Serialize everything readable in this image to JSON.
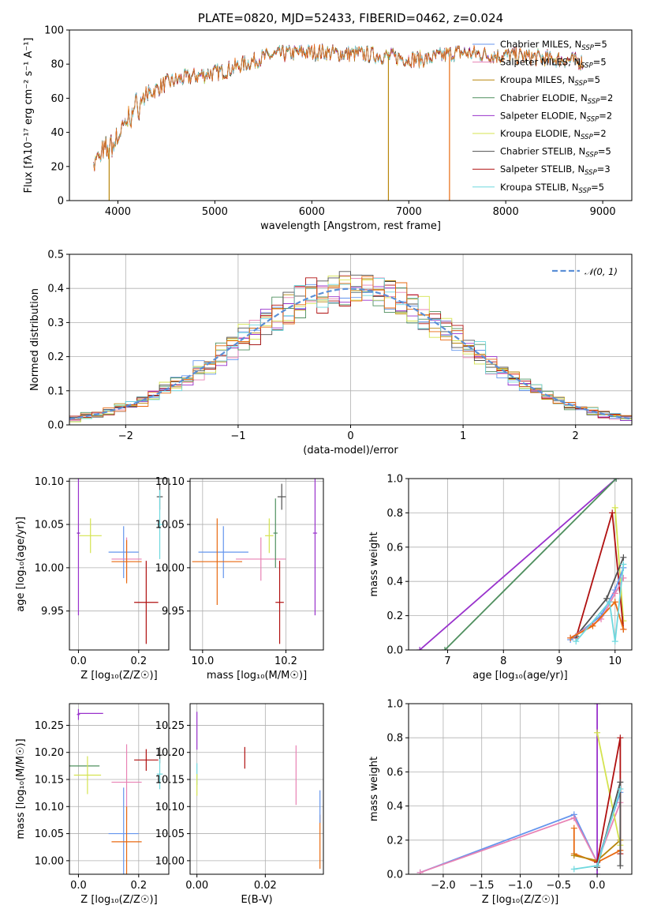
{
  "colors": {
    "Chabrier MILES": "#6495ed",
    "Salpeter MILES": "#e882b4",
    "Kroupa MILES": "#b8860b",
    "Chabrier ELODIE": "#4f8f5f",
    "Salpeter ELODIE": "#9932cc",
    "Kroupa ELODIE": "#d4e34f",
    "Chabrier STELIB": "#505050",
    "Salpeter STELIB": "#b01010",
    "Kroupa STELIB": "#6fd8de",
    "orange": "#e86a10",
    "normal": "#5b8fd6"
  },
  "chart_data": [
    {
      "id": "spectrum",
      "type": "line",
      "title": "PLATE=0820, MJD=52433, FIBERID=0462, z=0.024",
      "xlabel": "wavelength [Angstrom, rest frame]",
      "ylabel": "Flux [fλ10⁻¹⁷ erg cm⁻² s⁻¹ A⁻¹]",
      "xlim": [
        3500,
        9300
      ],
      "ylim": [
        0,
        100
      ],
      "xticks": [
        4000,
        5000,
        6000,
        7000,
        8000,
        9000
      ],
      "yticks": [
        0,
        20,
        40,
        60,
        80,
        100
      ],
      "grid": false,
      "legend_position": "top-right",
      "legend": [
        {
          "series": "Chabrier MILES",
          "label": "Chabrier MILES, N",
          "sub": "SSP",
          "tail": "=5"
        },
        {
          "series": "Salpeter MILES",
          "label": "Salpeter MILES, N",
          "sub": "SSP",
          "tail": "=5"
        },
        {
          "series": "Kroupa MILES",
          "label": "Kroupa MILES, N",
          "sub": "SSP",
          "tail": "=5"
        },
        {
          "series": "Chabrier ELODIE",
          "label": "Chabrier ELODIE, N",
          "sub": "SSP",
          "tail": "=2"
        },
        {
          "series": "Salpeter ELODIE",
          "label": "Salpeter ELODIE, N",
          "sub": "SSP",
          "tail": "=2"
        },
        {
          "series": "Kroupa ELODIE",
          "label": "Kroupa ELODIE, N",
          "sub": "SSP",
          "tail": "=2"
        },
        {
          "series": "Chabrier STELIB",
          "label": "Chabrier STELIB, N",
          "sub": "SSP",
          "tail": "=5"
        },
        {
          "series": "Salpeter STELIB",
          "label": "Salpeter STELIB, N",
          "sub": "SSP",
          "tail": "=3"
        },
        {
          "series": "Kroupa STELIB",
          "label": "Kroupa STELIB, N",
          "sub": "SSP",
          "tail": "=5"
        }
      ],
      "continuum": [
        [
          3750,
          22
        ],
        [
          3850,
          28
        ],
        [
          3950,
          33
        ],
        [
          4050,
          42
        ],
        [
          4150,
          52
        ],
        [
          4300,
          62
        ],
        [
          4500,
          69
        ],
        [
          4700,
          72
        ],
        [
          4900,
          74
        ],
        [
          5100,
          76
        ],
        [
          5300,
          80
        ],
        [
          5500,
          84
        ],
        [
          5700,
          86
        ],
        [
          5900,
          87
        ],
        [
          6100,
          87
        ],
        [
          6300,
          86
        ],
        [
          6500,
          86
        ],
        [
          6700,
          85
        ],
        [
          6900,
          84
        ],
        [
          7000,
          83
        ],
        [
          7200,
          83
        ],
        [
          7500,
          87
        ],
        [
          7700,
          86
        ],
        [
          7900,
          85
        ],
        [
          8100,
          85
        ],
        [
          8300,
          84
        ],
        [
          8500,
          83
        ],
        [
          8700,
          82
        ],
        [
          8800,
          81
        ]
      ],
      "drops": [
        {
          "x": 3910,
          "series": "Kroupa MILES"
        },
        {
          "x": 6790,
          "series": "Kroupa MILES"
        },
        {
          "x": 7420,
          "series": "orange"
        }
      ]
    },
    {
      "id": "residuals",
      "type": "step",
      "xlabel": "(data-model)/error",
      "ylabel": "Normed distribution",
      "xlim": [
        -2.5,
        2.5
      ],
      "ylim": [
        0,
        0.5
      ],
      "xticks": [
        -2,
        -1,
        0,
        1,
        2
      ],
      "yticks": [
        0.0,
        0.1,
        0.2,
        0.3,
        0.4,
        0.5
      ],
      "grid": true,
      "legend_position": "top-right",
      "legend_label": "𝒩(0, 1)",
      "normal_curve": {
        "mean": 0,
        "sigma": 1
      }
    },
    {
      "id": "Z-age",
      "type": "errorbar",
      "xlabel": "Z [log₁₀(Z/Z☉)]",
      "ylabel": "age  [log₁₀(age/yr)]",
      "xlim": [
        -0.03,
        0.3
      ],
      "ylim": [
        9.905,
        10.103
      ],
      "xticks": [
        0.0,
        0.2
      ],
      "yticks": [
        9.95,
        10.0,
        10.05,
        10.1
      ],
      "grid": true,
      "points": [
        {
          "c": "Chabrier MILES",
          "x": 0.15,
          "xe": 0.05,
          "y": 10.018,
          "ye": 0.03
        },
        {
          "c": "Salpeter MILES",
          "x": 0.16,
          "xe": 0.05,
          "y": 10.01,
          "ye": 0.025
        },
        {
          "c": "orange",
          "x": 0.16,
          "xe": 0.05,
          "y": 10.007,
          "ye": 0.025
        },
        {
          "c": "Chabrier ELODIE",
          "x": 0.0,
          "xe": 0.005,
          "y": 10.04,
          "ye": 0.001
        },
        {
          "c": "Salpeter ELODIE",
          "x": 0.0,
          "xe": 0.005,
          "y": 10.04,
          "ye": 0.095
        },
        {
          "c": "Kroupa ELODIE",
          "x": 0.04,
          "xe": 0.037,
          "y": 10.037,
          "ye": 0.02
        },
        {
          "c": "Chabrier STELIB",
          "x": 0.27,
          "xe": 0.01,
          "y": 10.082,
          "ye": 0.015
        },
        {
          "c": "Salpeter STELIB",
          "x": 0.225,
          "xe": 0.04,
          "y": 9.96,
          "ye": 0.048
        },
        {
          "c": "Kroupa STELIB",
          "x": 0.27,
          "xe": 0.01,
          "y": 10.05,
          "ye": 0.04
        }
      ]
    },
    {
      "id": "mass-age",
      "type": "errorbar",
      "xlabel": "mass [log₁₀(M/M☉)]",
      "ylabel": "",
      "xlim": [
        9.97,
        10.29
      ],
      "ylim": [
        9.905,
        10.103
      ],
      "xticks": [
        10.0,
        10.2
      ],
      "yticks": [
        9.95,
        10.0,
        10.05,
        10.1
      ],
      "grid": true,
      "points": [
        {
          "c": "Chabrier MILES",
          "x": 10.05,
          "xe": 0.06,
          "y": 10.018,
          "ye": 0.03
        },
        {
          "c": "orange",
          "x": 10.035,
          "xe": 0.06,
          "y": 10.007,
          "ye": 0.05
        },
        {
          "c": "Salpeter MILES",
          "x": 10.14,
          "xe": 0.06,
          "y": 10.01,
          "ye": 0.025
        },
        {
          "c": "Chabrier STELIB",
          "x": 10.19,
          "xe": 0.01,
          "y": 10.082,
          "ye": 0.015
        },
        {
          "c": "Chabrier ELODIE",
          "x": 10.175,
          "xe": 0.005,
          "y": 10.04,
          "ye": 0.04
        },
        {
          "c": "Salpeter ELODIE",
          "x": 10.27,
          "xe": 0.005,
          "y": 10.04,
          "ye": 0.095
        },
        {
          "c": "Salpeter STELIB",
          "x": 10.185,
          "xe": 0.01,
          "y": 9.96,
          "ye": 0.048
        },
        {
          "c": "Kroupa ELODIE",
          "x": 10.16,
          "xe": 0.01,
          "y": 10.037,
          "ye": 0.02
        }
      ]
    },
    {
      "id": "age-weight",
      "type": "line",
      "xlabel": "age  [log₁₀(age/yr)]",
      "ylabel": "mass weight",
      "xlim": [
        6.3,
        10.3
      ],
      "ylim": [
        0,
        1.0
      ],
      "xticks": [
        7,
        8,
        9,
        10
      ],
      "yticks": [
        0.0,
        0.2,
        0.4,
        0.6,
        0.8,
        1.0
      ],
      "grid": true,
      "series": [
        {
          "c": "Salpeter ELODIE",
          "pts": [
            [
              6.5,
              0.0
            ],
            [
              10.02,
              1.0
            ]
          ]
        },
        {
          "c": "Chabrier ELODIE",
          "pts": [
            [
              6.95,
              0.0
            ],
            [
              10.02,
              1.0
            ]
          ]
        },
        {
          "c": "Kroupa ELODIE",
          "pts": [
            [
              10.0,
              0.83
            ],
            [
              10.15,
              0.17
            ]
          ]
        },
        {
          "c": "Salpeter STELIB",
          "pts": [
            [
              9.3,
              0.07
            ],
            [
              9.95,
              0.8
            ],
            [
              10.15,
              0.12
            ]
          ]
        },
        {
          "c": "Chabrier STELIB",
          "pts": [
            [
              9.3,
              0.08
            ],
            [
              9.85,
              0.3
            ],
            [
              10.15,
              0.54
            ]
          ]
        },
        {
          "c": "Chabrier MILES",
          "pts": [
            [
              9.2,
              0.06
            ],
            [
              9.75,
              0.2
            ],
            [
              10.0,
              0.35
            ],
            [
              10.15,
              0.48
            ]
          ]
        },
        {
          "c": "Salpeter MILES",
          "pts": [
            [
              9.2,
              0.07
            ],
            [
              9.75,
              0.18
            ],
            [
              10.0,
              0.33
            ],
            [
              10.15,
              0.42
            ]
          ]
        },
        {
          "c": "orange",
          "pts": [
            [
              9.2,
              0.07
            ],
            [
              9.6,
              0.14
            ],
            [
              10.0,
              0.28
            ],
            [
              10.15,
              0.12
            ]
          ]
        },
        {
          "c": "Kroupa STELIB",
          "pts": [
            [
              9.3,
              0.05
            ],
            [
              9.9,
              0.28
            ],
            [
              10.0,
              0.05
            ],
            [
              10.15,
              0.5
            ]
          ]
        }
      ]
    },
    {
      "id": "Z-mass",
      "type": "errorbar",
      "xlabel": "Z [log₁₀(Z/Z☉)]",
      "ylabel": "mass [log₁₀(M/M☉)]",
      "xlim": [
        -0.03,
        0.3
      ],
      "ylim": [
        9.975,
        10.29
      ],
      "xticks": [
        0.0,
        0.2
      ],
      "yticks": [
        10.0,
        10.05,
        10.1,
        10.15,
        10.2,
        10.25
      ],
      "grid": true,
      "points": [
        {
          "c": "Salpeter ELODIE",
          "x": 0.0,
          "xe": 0.005,
          "y": 10.27,
          "ye": 0.01
        },
        {
          "c": "Salpeter ELODIE",
          "x": 0.04,
          "xe": 0.042,
          "y": 10.272,
          "ye": 0.0
        },
        {
          "c": "Chabrier ELODIE",
          "x": 0.02,
          "xe": 0.05,
          "y": 10.175,
          "ye": 0.0
        },
        {
          "c": "Kroupa ELODIE",
          "x": 0.03,
          "xe": 0.045,
          "y": 10.158,
          "ye": 0.035
        },
        {
          "c": "Salpeter MILES",
          "x": 0.16,
          "xe": 0.05,
          "y": 10.145,
          "ye": 0.07
        },
        {
          "c": "Chabrier MILES",
          "x": 0.15,
          "xe": 0.05,
          "y": 10.05,
          "ye": 0.085
        },
        {
          "c": "orange",
          "x": 0.16,
          "xe": 0.05,
          "y": 10.035,
          "ye": 0.065
        },
        {
          "c": "Salpeter STELIB",
          "x": 0.225,
          "xe": 0.04,
          "y": 10.186,
          "ye": 0.02
        },
        {
          "c": "Chabrier STELIB",
          "x": 0.27,
          "xe": 0.01,
          "y": 10.195,
          "ye": 0.015
        },
        {
          "c": "Kroupa STELIB",
          "x": 0.27,
          "xe": 0.01,
          "y": 10.16,
          "ye": 0.028
        }
      ]
    },
    {
      "id": "ebv-mass",
      "type": "errorbar",
      "xlabel": "E(B-V)",
      "ylabel": "",
      "xlim": [
        -0.002,
        0.037
      ],
      "ylim": [
        9.975,
        10.29
      ],
      "xticks": [
        0.0,
        0.02
      ],
      "yticks": [
        10.0,
        10.05,
        10.1,
        10.15,
        10.2,
        10.25
      ],
      "grid": true,
      "points": [
        {
          "c": "Salpeter ELODIE",
          "x": 0.0,
          "xe": 0.0,
          "y": 10.24,
          "ye": 0.035
        },
        {
          "c": "Kroupa STELIB",
          "x": 0.0,
          "xe": 0.0,
          "y": 10.16,
          "ye": 0.02
        },
        {
          "c": "Kroupa ELODIE",
          "x": 0.0,
          "xe": 0.0,
          "y": 10.14,
          "ye": 0.02
        },
        {
          "c": "Salpeter STELIB",
          "x": 0.014,
          "xe": 0.0,
          "y": 10.19,
          "ye": 0.02
        },
        {
          "c": "Salpeter MILES",
          "x": 0.029,
          "xe": 0.0,
          "y": 10.158,
          "ye": 0.055
        },
        {
          "c": "orange",
          "x": 0.036,
          "xe": 0.0,
          "y": 10.035,
          "ye": 0.05
        },
        {
          "c": "Chabrier MILES",
          "x": 0.036,
          "xe": 0.0,
          "y": 10.1,
          "ye": 0.03
        }
      ]
    },
    {
      "id": "Z-weight",
      "type": "line",
      "xlabel": "Z [log₁₀(Z/Z☉)]",
      "ylabel": "mass weight",
      "xlim": [
        -2.45,
        0.45
      ],
      "ylim": [
        0,
        1.0
      ],
      "xticks": [
        -2.0,
        -1.5,
        -1.0,
        -0.5,
        0.0
      ],
      "yticks": [
        0.0,
        0.2,
        0.4,
        0.6,
        0.8,
        1.0
      ],
      "grid": true,
      "series": [
        {
          "c": "Chabrier MILES",
          "pts": [
            [
              -2.3,
              0.01
            ],
            [
              -0.3,
              0.35
            ],
            [
              0.0,
              0.07
            ],
            [
              0.3,
              0.48
            ]
          ]
        },
        {
          "c": "Salpeter MILES",
          "pts": [
            [
              -2.3,
              0.01
            ],
            [
              -0.3,
              0.33
            ],
            [
              0.0,
              0.07
            ],
            [
              0.3,
              0.42
            ]
          ]
        },
        {
          "c": "orange",
          "pts": [
            [
              -0.3,
              0.27
            ],
            [
              -0.3,
              0.12
            ],
            [
              0.0,
              0.07
            ],
            [
              0.3,
              0.14
            ]
          ]
        },
        {
          "c": "Kroupa MILES",
          "pts": [
            [
              -0.3,
              0.11
            ],
            [
              0.0,
              0.08
            ],
            [
              0.3,
              0.2
            ]
          ]
        },
        {
          "c": "Salpeter ELODIE",
          "pts": [
            [
              0.0,
              1.0
            ],
            [
              0.0,
              0.0
            ]
          ]
        },
        {
          "c": "Kroupa ELODIE",
          "pts": [
            [
              0.0,
              0.83
            ],
            [
              0.3,
              0.17
            ]
          ]
        },
        {
          "c": "Salpeter STELIB",
          "pts": [
            [
              0.0,
              0.07
            ],
            [
              0.3,
              0.8
            ],
            [
              0.3,
              0.12
            ]
          ]
        },
        {
          "c": "Chabrier STELIB",
          "pts": [
            [
              0.0,
              0.04
            ],
            [
              0.3,
              0.54
            ],
            [
              0.3,
              0.05
            ]
          ]
        },
        {
          "c": "Kroupa STELIB",
          "pts": [
            [
              -0.3,
              0.03
            ],
            [
              0.0,
              0.05
            ],
            [
              0.3,
              0.5
            ]
          ]
        }
      ]
    }
  ]
}
